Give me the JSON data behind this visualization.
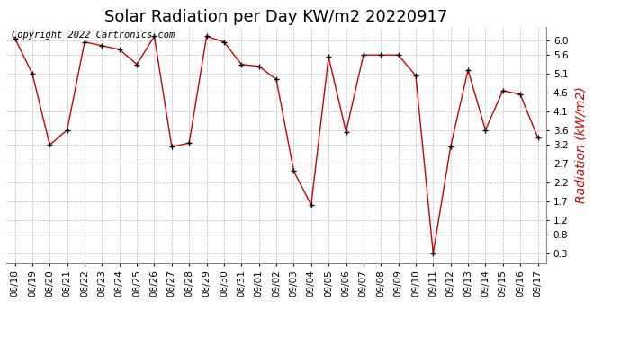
{
  "title": "Solar Radiation per Day KW/m2 20220917",
  "ylabel": "Radiation (kW/m2)",
  "copyright_text": "Copyright 2022 Cartronics.com",
  "dates": [
    "08/18",
    "08/19",
    "08/20",
    "08/21",
    "08/22",
    "08/23",
    "08/24",
    "08/25",
    "08/26",
    "08/27",
    "08/28",
    "08/29",
    "08/30",
    "08/31",
    "09/01",
    "09/02",
    "09/03",
    "09/04",
    "09/05",
    "09/06",
    "09/07",
    "09/08",
    "09/09",
    "09/10",
    "09/11",
    "09/12",
    "09/13",
    "09/14",
    "09/15",
    "09/16",
    "09/17"
  ],
  "values": [
    6.05,
    5.1,
    3.2,
    3.6,
    5.95,
    5.85,
    5.75,
    5.35,
    6.1,
    3.15,
    3.25,
    6.1,
    5.95,
    5.35,
    5.3,
    4.95,
    2.5,
    1.6,
    5.55,
    3.55,
    5.6,
    5.6,
    5.6,
    5.05,
    0.3,
    3.15,
    5.2,
    3.6,
    4.65,
    4.55,
    3.4
  ],
  "line_color": "#cc0000",
  "marker_color": "#000000",
  "background_color": "#ffffff",
  "grid_color": "#bbbbbb",
  "ylim": [
    0.05,
    6.35
  ],
  "yticks": [
    0.3,
    0.8,
    1.2,
    1.7,
    2.2,
    2.7,
    3.2,
    3.6,
    4.1,
    4.6,
    5.1,
    5.6,
    6.0
  ],
  "title_fontsize": 13,
  "ylabel_fontsize": 10,
  "copyright_fontsize": 7.5,
  "tick_fontsize": 7.5
}
